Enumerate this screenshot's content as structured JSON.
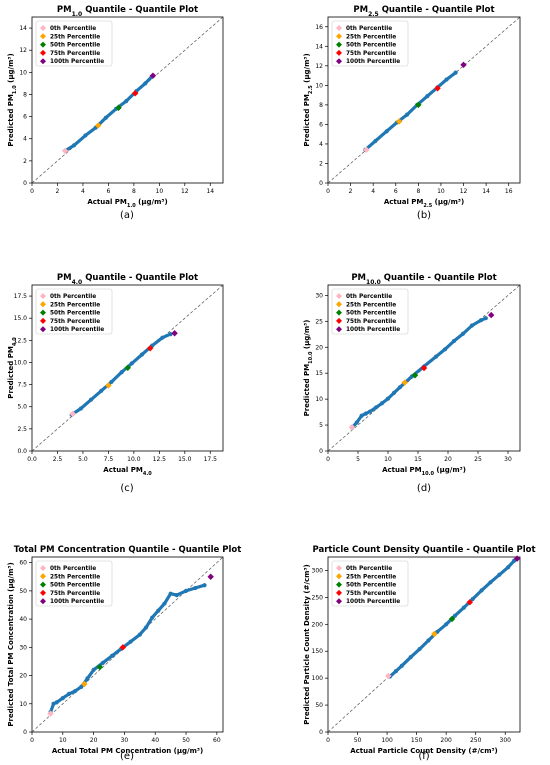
{
  "legend_labels": [
    "0th Percentile",
    "25th Percentile",
    "50th Percentile",
    "75th Percentile",
    "100th Percentile"
  ],
  "percentile_colors": [
    "#ffb6c1",
    "#ffa500",
    "#008000",
    "#ff0000",
    "#800080"
  ],
  "series_color": "#1f77b4",
  "chart_data": [
    {
      "type": "scatter",
      "panel_label": "(a)",
      "title_main": "PM",
      "title_sub": "1.0",
      "title_rest": " Quantile - Quantile Plot",
      "xlabel_main": "Actual PM",
      "xlabel_sub": "1.0",
      "xlabel_rest": " (μg/m³)",
      "ylabel_main": "Predicted PM",
      "ylabel_sub": "1.0",
      "ylabel_rest": " (μg/m³)",
      "xlim": [
        0,
        15
      ],
      "ylim": [
        0,
        15
      ],
      "xticks": [
        "0",
        "2",
        "4",
        "6",
        "8",
        "10",
        "12",
        "14"
      ],
      "yticks": [
        "0",
        "2",
        "4",
        "6",
        "8",
        "10",
        "12",
        "14"
      ],
      "tickvals": [
        0,
        2,
        4,
        6,
        8,
        10,
        12,
        14
      ],
      "quantile_points": [
        [
          2.6,
          2.9
        ],
        [
          3.3,
          3.4
        ],
        [
          4.2,
          4.3
        ],
        [
          5.0,
          5.0
        ],
        [
          5.8,
          5.9
        ],
        [
          6.6,
          6.7
        ],
        [
          7.4,
          7.4
        ],
        [
          8.2,
          8.3
        ],
        [
          8.9,
          9.0
        ],
        [
          9.4,
          9.6
        ]
      ],
      "percentiles": [
        [
          2.6,
          2.9
        ],
        [
          5.2,
          5.2
        ],
        [
          6.8,
          6.8
        ],
        [
          8.1,
          8.1
        ],
        [
          9.5,
          9.7
        ]
      ]
    },
    {
      "type": "scatter",
      "panel_label": "(b)",
      "title_main": "PM",
      "title_sub": "2.5",
      "title_rest": " Quantile - Quantile Plot",
      "xlabel_main": "Actual PM",
      "xlabel_sub": "2.5",
      "xlabel_rest": " (μg/m³)",
      "ylabel_main": "Predicted PM",
      "ylabel_sub": "2.5",
      "ylabel_rest": " (μg/m³)",
      "xlim": [
        0,
        17
      ],
      "ylim": [
        0,
        17
      ],
      "xticks": [
        "0",
        "2",
        "4",
        "6",
        "8",
        "10",
        "12",
        "14",
        "16"
      ],
      "yticks": [
        "0",
        "2",
        "4",
        "6",
        "8",
        "10",
        "12",
        "14",
        "16"
      ],
      "tickvals": [
        0,
        2,
        4,
        6,
        8,
        10,
        12,
        14,
        16
      ],
      "quantile_points": [
        [
          3.3,
          3.4
        ],
        [
          4.2,
          4.3
        ],
        [
          5.2,
          5.3
        ],
        [
          6.1,
          6.2
        ],
        [
          7.0,
          7.0
        ],
        [
          7.9,
          8.0
        ],
        [
          8.8,
          8.9
        ],
        [
          9.7,
          9.8
        ],
        [
          10.5,
          10.6
        ],
        [
          11.3,
          11.3
        ]
      ],
      "percentiles": [
        [
          3.4,
          3.4
        ],
        [
          6.3,
          6.3
        ],
        [
          8.0,
          8.0
        ],
        [
          9.7,
          9.7
        ],
        [
          12.0,
          12.1
        ]
      ]
    },
    {
      "type": "scatter",
      "panel_label": "(c)",
      "title_main": "PM",
      "title_sub": "4.0",
      "title_rest": " Quantile - Quantile Plot",
      "xlabel_main": "Actual PM",
      "xlabel_sub": "4.0",
      "xlabel_rest": "",
      "ylabel_main": "Predicted PM",
      "ylabel_sub": "4.0",
      "ylabel_rest": "",
      "xlim": [
        0,
        18.75
      ],
      "ylim": [
        0,
        18.75
      ],
      "xticks": [
        "0.0",
        "2.5",
        "5.0",
        "7.5",
        "10.0",
        "12.5",
        "15.0",
        "17.5"
      ],
      "yticks": [
        "0.0",
        "2.5",
        "5.0",
        "7.5",
        "10.0",
        "12.5",
        "15.0",
        "17.5"
      ],
      "tickvals": [
        0,
        2.5,
        5,
        7.5,
        10,
        12.5,
        15,
        17.5
      ],
      "quantile_points": [
        [
          3.9,
          4.1
        ],
        [
          4.8,
          4.8
        ],
        [
          5.8,
          5.8
        ],
        [
          6.8,
          6.8
        ],
        [
          7.8,
          7.8
        ],
        [
          8.8,
          8.9
        ],
        [
          9.8,
          9.9
        ],
        [
          10.8,
          10.9
        ],
        [
          11.8,
          11.9
        ],
        [
          12.8,
          12.8
        ],
        [
          13.6,
          13.2
        ]
      ],
      "percentiles": [
        [
          4.0,
          4.2
        ],
        [
          7.5,
          7.4
        ],
        [
          9.4,
          9.4
        ],
        [
          11.6,
          11.6
        ],
        [
          14.0,
          13.3
        ]
      ]
    },
    {
      "type": "scatter",
      "panel_label": "(d)",
      "title_main": "PM",
      "title_sub": "10.0",
      "title_rest": " Quantile - Quantile Plot",
      "xlabel_main": "Actual PM",
      "xlabel_sub": "10.0",
      "xlabel_rest": " (μg/m³)",
      "ylabel_main": "Predicted PM",
      "ylabel_sub": "10.0",
      "ylabel_rest": " (μg/m³)",
      "xlim": [
        0,
        32
      ],
      "ylim": [
        0,
        32
      ],
      "xticks": [
        "0",
        "5",
        "10",
        "15",
        "20",
        "25",
        "30"
      ],
      "yticks": [
        "0",
        "5",
        "10",
        "15",
        "20",
        "25",
        "30"
      ],
      "tickvals": [
        0,
        5,
        10,
        15,
        20,
        25,
        30
      ],
      "quantile_points": [
        [
          4.0,
          4.5
        ],
        [
          4.8,
          5.5
        ],
        [
          5.6,
          6.8
        ],
        [
          6.3,
          7.2
        ],
        [
          7.0,
          7.6
        ],
        [
          8.0,
          8.4
        ],
        [
          9.0,
          9.2
        ],
        [
          10.0,
          10.1
        ],
        [
          11.0,
          11.2
        ],
        [
          12.0,
          12.3
        ],
        [
          14.0,
          14.4
        ],
        [
          16.0,
          16.3
        ],
        [
          18.0,
          18.2
        ],
        [
          19.5,
          19.6
        ],
        [
          21.0,
          21.2
        ],
        [
          22.5,
          22.6
        ],
        [
          24.0,
          24.2
        ],
        [
          25.5,
          25.2
        ],
        [
          26.3,
          25.6
        ]
      ],
      "percentiles": [
        [
          4.0,
          4.6
        ],
        [
          12.8,
          13.2
        ],
        [
          14.5,
          14.6
        ],
        [
          16.0,
          16.0
        ],
        [
          27.2,
          26.2
        ]
      ]
    },
    {
      "type": "scatter",
      "panel_label": "(e)",
      "title_main": "Total PM Concentration Quantile - Quantile Plot",
      "title_sub": "",
      "title_rest": "",
      "xlabel_main": "Actual Total PM Concentration (μg/m³)",
      "xlabel_sub": "",
      "xlabel_rest": "",
      "ylabel_main": "Predicted Total PM Concentration (μg/m³)",
      "ylabel_sub": "",
      "ylabel_rest": "",
      "xlim": [
        0,
        62
      ],
      "ylim": [
        0,
        62
      ],
      "xticks": [
        "0",
        "10",
        "20",
        "30",
        "40",
        "50",
        "60"
      ],
      "yticks": [
        "0",
        "10",
        "20",
        "30",
        "40",
        "50",
        "60"
      ],
      "tickvals": [
        0,
        10,
        20,
        30,
        40,
        50,
        60
      ],
      "quantile_points": [
        [
          6.0,
          7.0
        ],
        [
          7.0,
          10.0
        ],
        [
          8.0,
          10.5
        ],
        [
          10.0,
          12.0
        ],
        [
          12.0,
          13.5
        ],
        [
          14.0,
          14.5
        ],
        [
          16.0,
          16.0
        ],
        [
          18.0,
          19.0
        ],
        [
          20.0,
          22.0
        ],
        [
          23.0,
          24.5
        ],
        [
          26.0,
          27.0
        ],
        [
          29.0,
          29.5
        ],
        [
          32.0,
          32.0
        ],
        [
          35.0,
          34.5
        ],
        [
          37.0,
          37.0
        ],
        [
          39.0,
          40.5
        ],
        [
          41.0,
          43.0
        ],
        [
          43.0,
          45.5
        ],
        [
          45.0,
          49.0
        ],
        [
          47.0,
          48.5
        ],
        [
          50.0,
          50.0
        ],
        [
          53.0,
          51.0
        ],
        [
          56.0,
          52.0
        ]
      ],
      "percentiles": [
        [
          6.0,
          6.5
        ],
        [
          17.0,
          17.0
        ],
        [
          22.0,
          23.0
        ],
        [
          29.5,
          30.0
        ],
        [
          58.0,
          55.0
        ]
      ]
    },
    {
      "type": "scatter",
      "panel_label": "(f)",
      "title_main": "Particle Count Density Quantile - Quantile Plot",
      "title_sub": "",
      "title_rest": "",
      "xlabel_main": "Actual Particle Count Density (#/cm³)",
      "xlabel_sub": "",
      "xlabel_rest": "",
      "ylabel_main": "Predicted Particle Count Density (#/cm³)",
      "ylabel_sub": "",
      "ylabel_rest": "",
      "xlim": [
        0,
        325
      ],
      "ylim": [
        0,
        325
      ],
      "xticks": [
        "0",
        "50",
        "100",
        "150",
        "200",
        "250",
        "300"
      ],
      "yticks": [
        "0",
        "50",
        "100",
        "150",
        "200",
        "250",
        "300"
      ],
      "tickvals": [
        0,
        50,
        100,
        150,
        200,
        250,
        300
      ],
      "quantile_points": [
        [
          105,
          103
        ],
        [
          115,
          113
        ],
        [
          125,
          123
        ],
        [
          140,
          139
        ],
        [
          155,
          154
        ],
        [
          170,
          170
        ],
        [
          185,
          186
        ],
        [
          200,
          200
        ],
        [
          215,
          216
        ],
        [
          230,
          231
        ],
        [
          245,
          247
        ],
        [
          260,
          263
        ],
        [
          275,
          278
        ],
        [
          290,
          292
        ],
        [
          305,
          306
        ],
        [
          315,
          318
        ]
      ],
      "percentiles": [
        [
          102,
          104
        ],
        [
          180,
          182
        ],
        [
          210,
          210
        ],
        [
          240,
          241
        ],
        [
          320,
          322
        ]
      ]
    }
  ]
}
